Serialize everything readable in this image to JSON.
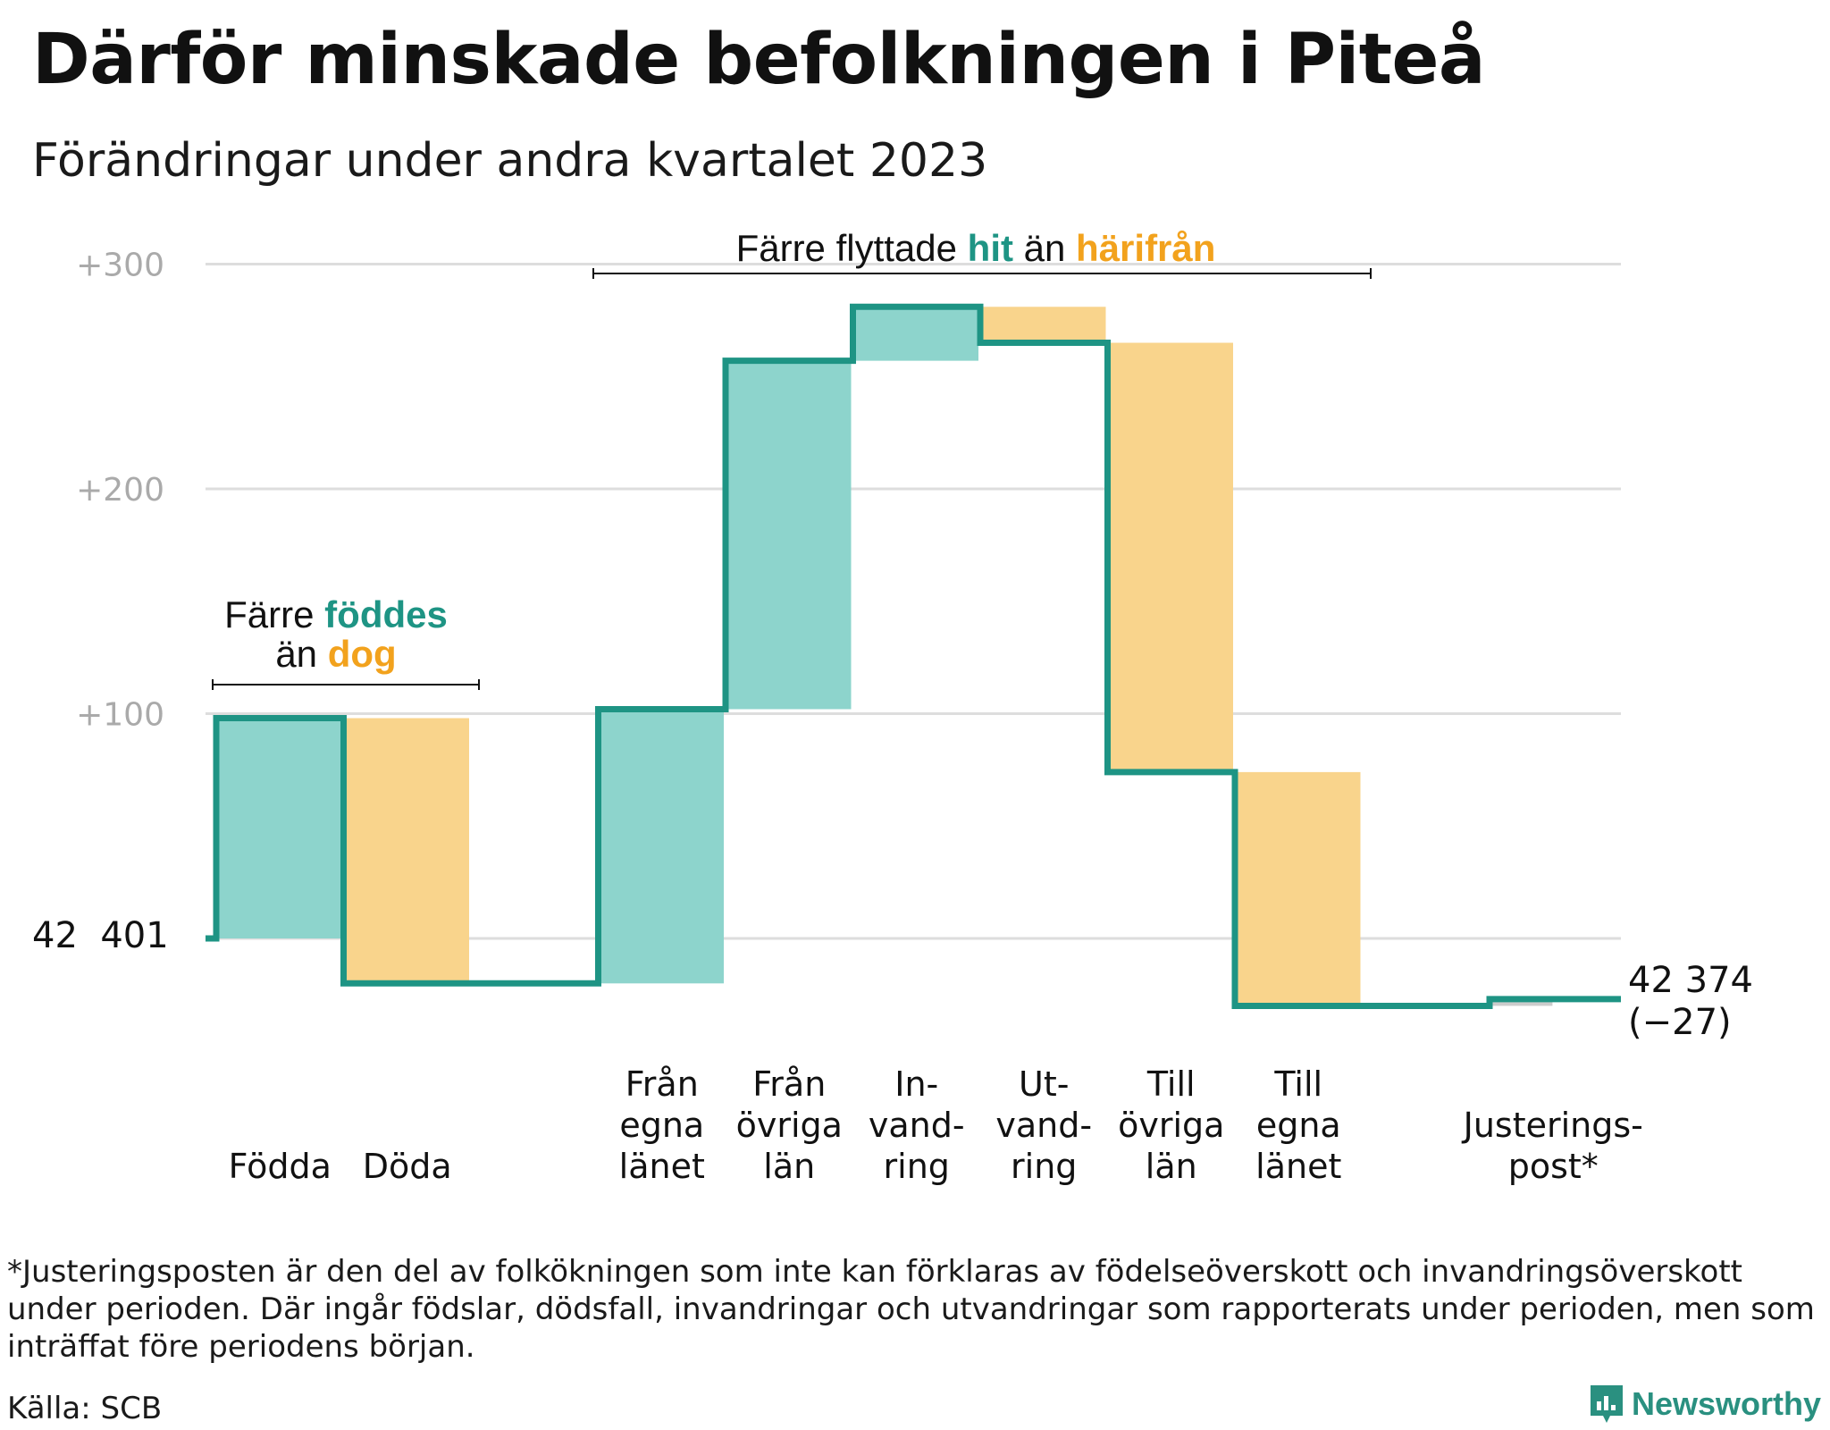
{
  "title": "Därför minskade befolkningen i Piteå",
  "subtitle": "Förändringar under andra kvartalet 2023",
  "colors": {
    "increase": "#8dd4cc",
    "decrease": "#f9d48c",
    "adjustment": "#cccccc",
    "line": "#1e9484",
    "hit": "#1e9484",
    "harifran": "#f2a21d",
    "grid": "#dddddd",
    "tick_text": "#aaaaaa"
  },
  "annotations": {
    "left": {
      "pre": "Färre",
      "hi1": "föddes",
      "line2_pre": "än",
      "hi2": "dog"
    },
    "top": {
      "pre": "Färre flyttade",
      "hi1": "hit",
      "mid": "än",
      "hi2": "härifrån"
    }
  },
  "start_label": "42  401",
  "end_label": {
    "value": "42 374",
    "change": "(−27)"
  },
  "chart_data": {
    "type": "waterfall",
    "title": "Därför minskade befolkningen i Piteå",
    "subtitle": "Förändringar under andra kvartalet 2023",
    "start_value": 42401,
    "end_value": 42374,
    "net_change": -27,
    "y_ticks": [
      "+100",
      "+200",
      "+300"
    ],
    "y_tick_values": [
      100,
      200,
      300
    ],
    "ylim": [
      -40,
      300
    ],
    "grid": true,
    "steps": [
      {
        "label": [
          "Födda"
        ],
        "change": 98,
        "kind": "increase"
      },
      {
        "label": [
          "Döda"
        ],
        "change": -118,
        "kind": "decrease"
      },
      {
        "label": [],
        "change": 0,
        "kind": "gap"
      },
      {
        "label": [
          "Från",
          "egna",
          "länet"
        ],
        "change": 122,
        "kind": "increase"
      },
      {
        "label": [
          "Från",
          "övriga",
          "län"
        ],
        "change": 155,
        "kind": "increase"
      },
      {
        "label": [
          "In-",
          "vand-",
          "ring"
        ],
        "change": 24,
        "kind": "increase"
      },
      {
        "label": [
          "Ut-",
          "vand-",
          "ring"
        ],
        "change": -16,
        "kind": "decrease"
      },
      {
        "label": [
          "Till",
          "övriga",
          "län"
        ],
        "change": -191,
        "kind": "decrease"
      },
      {
        "label": [
          "Till",
          "egna",
          "länet"
        ],
        "change": -104,
        "kind": "decrease"
      },
      {
        "label": [],
        "change": 0,
        "kind": "gap"
      },
      {
        "label": [
          "Justerings-",
          "post*"
        ],
        "change": 3,
        "kind": "adjustment"
      }
    ]
  },
  "footnote": "*Justeringsposten är den del av folkökningen som inte kan förklaras av födelseöverskott och invandringsöverskott under perioden. Där ingår födslar, dödsfall, invandringar och utvandringar som rapporterats under perioden, men som inträffat före periodens början.",
  "source": "Källa: SCB",
  "brand": {
    "name": "Newsworthy",
    "icon": "newsworthy-logo-icon"
  }
}
